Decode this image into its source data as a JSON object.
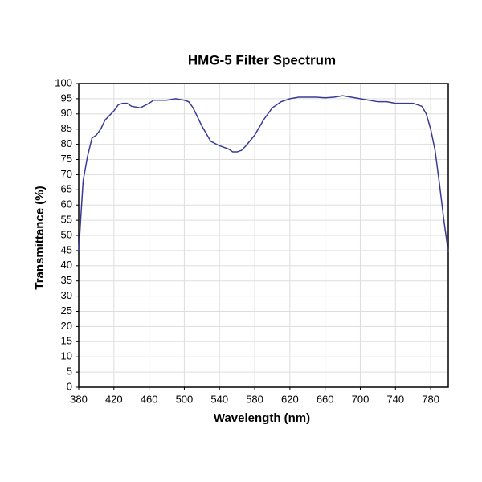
{
  "chart_data": {
    "type": "line",
    "title": "HMG-5 Filter Spectrum",
    "x_label": "Wavelength (nm)",
    "y_label": "Transmittance (%)",
    "x": [
      380,
      385,
      390,
      395,
      400,
      405,
      410,
      420,
      425,
      430,
      435,
      440,
      450,
      460,
      465,
      470,
      480,
      490,
      500,
      505,
      510,
      520,
      530,
      540,
      550,
      555,
      560,
      565,
      570,
      580,
      590,
      600,
      610,
      620,
      630,
      640,
      650,
      660,
      670,
      680,
      690,
      700,
      710,
      720,
      730,
      740,
      750,
      760,
      770,
      775,
      780,
      785,
      790,
      795,
      800
    ],
    "series": [
      {
        "name": "HMG-5",
        "color": "#3a3a95",
        "values": [
          45,
          68,
          76,
          82,
          83,
          85,
          88,
          91,
          93,
          93.5,
          93.5,
          92.5,
          92,
          93.5,
          94.5,
          94.5,
          94.5,
          95,
          94.5,
          94,
          92,
          86,
          81,
          79.5,
          78.5,
          77.5,
          77.5,
          78,
          79.5,
          83,
          88,
          92,
          94,
          95,
          95.5,
          95.5,
          95.5,
          95.3,
          95.5,
          96,
          95.5,
          95,
          94.5,
          94,
          94,
          93.5,
          93.5,
          93.5,
          92.5,
          90,
          85,
          78,
          67,
          55,
          44.5
        ]
      }
    ],
    "xlim": [
      380,
      800
    ],
    "xticks": [
      380,
      420,
      460,
      500,
      540,
      580,
      620,
      660,
      700,
      740,
      780
    ],
    "ylim": [
      0,
      100
    ],
    "yticks": [
      0,
      5,
      10,
      15,
      20,
      25,
      30,
      35,
      40,
      45,
      50,
      55,
      60,
      65,
      70,
      75,
      80,
      85,
      90,
      95,
      100
    ],
    "grid": true
  }
}
